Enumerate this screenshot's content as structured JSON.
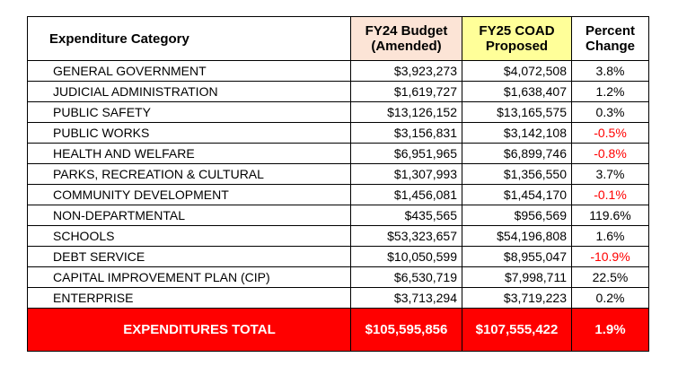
{
  "table": {
    "headers": [
      [
        "Expenditure Category"
      ],
      [
        "FY24 Budget",
        "(Amended)"
      ],
      [
        "FY25 COAD",
        "Proposed"
      ],
      [
        "Percent",
        "Change"
      ]
    ],
    "rows": [
      [
        "GENERAL GOVERNMENT",
        "$3,923,273",
        "$4,072,508",
        "3.8%"
      ],
      [
        "JUDICIAL ADMINISTRATION",
        "$1,619,727",
        "$1,638,407",
        "1.2%"
      ],
      [
        "PUBLIC SAFETY",
        "$13,126,152",
        "$13,165,575",
        "0.3%"
      ],
      [
        "PUBLIC WORKS",
        "$3,156,831",
        "$3,142,108",
        "-0.5%"
      ],
      [
        "HEALTH AND WELFARE",
        "$6,951,965",
        "$6,899,746",
        "-0.8%"
      ],
      [
        "PARKS, RECREATION & CULTURAL",
        "$1,307,993",
        "$1,356,550",
        "3.7%"
      ],
      [
        "COMMUNITY DEVELOPMENT",
        "$1,456,081",
        "$1,454,170",
        "-0.1%"
      ],
      [
        "NON-DEPARTMENTAL",
        "$435,565",
        "$956,569",
        "119.6%"
      ],
      [
        "SCHOOLS",
        "$53,323,657",
        "$54,196,808",
        "1.6%"
      ],
      [
        "DEBT SERVICE",
        "$10,050,599",
        "$8,955,047",
        "-10.9%"
      ],
      [
        "CAPITAL IMPROVEMENT PLAN (CIP)",
        "$6,530,719",
        "$7,998,711",
        "22.5%"
      ],
      [
        "ENTERPRISE",
        "$3,713,294",
        "$3,719,223",
        "0.2%"
      ]
    ],
    "total": [
      "EXPENDITURES TOTAL",
      "$105,595,856",
      "$107,555,422",
      "1.9%"
    ]
  }
}
